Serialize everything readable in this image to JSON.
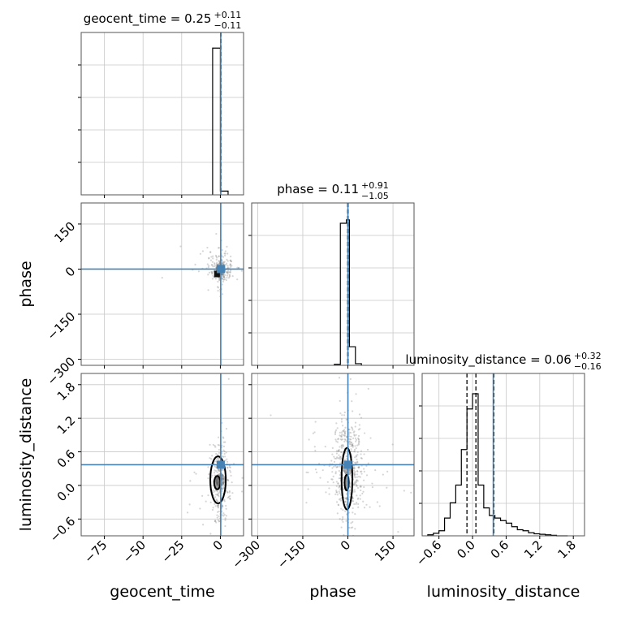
{
  "chart_data": {
    "type": "corner",
    "parameters": [
      {
        "key": "geocent_time",
        "label": "geocent_time",
        "ticks": [
          -75,
          -50,
          -25,
          0
        ],
        "tick_labels": [
          "−75",
          "−50",
          "−25",
          "0"
        ],
        "range": [
          -90,
          15
        ],
        "truth": 0.25
      },
      {
        "key": "phase",
        "label": "phase",
        "ticks": [
          -300,
          -150,
          0,
          150
        ],
        "tick_labels": [
          "−300",
          "−150",
          "0",
          "150"
        ],
        "range": [
          -320,
          220
        ],
        "truth": 0.11
      },
      {
        "key": "luminosity_distance",
        "label": "luminosity_distance",
        "ticks": [
          -0.6,
          0.0,
          0.6,
          1.2,
          1.8
        ],
        "tick_labels": [
          "−0.6",
          "0.0",
          "0.6",
          "1.2",
          "1.8"
        ],
        "range": [
          -0.9,
          2.0
        ],
        "truth": 0.37
      }
    ],
    "titles": [
      {
        "param": "geocent_time",
        "prefix": "geocent_time = ",
        "median": "0.25",
        "plus": "+0.11",
        "minus": "−0.11"
      },
      {
        "param": "phase",
        "prefix": "phase = ",
        "median": "0.11",
        "plus": "+0.91",
        "minus": "−1.05"
      },
      {
        "param": "luminosity_distance",
        "prefix": "luminosity_distance = ",
        "median": "0.06",
        "plus": "+0.32",
        "minus": "−0.16"
      }
    ],
    "histograms": [
      {
        "param": "geocent_time",
        "bin_edges": [
          -5,
          0,
          5
        ],
        "counts": [
          4.7,
          0.12
        ],
        "quantiles": [
          0.14,
          0.25,
          0.36
        ],
        "ymax": 5.2
      },
      {
        "param": "phase",
        "bin_edges": [
          -45,
          -25,
          -5,
          5,
          25,
          45
        ],
        "counts": [
          0.03,
          4.2,
          4.3,
          0.55,
          0.05
        ],
        "quantiles": [
          -0.94,
          0.11,
          1.02
        ],
        "ymax": 4.8
      },
      {
        "param": "luminosity_distance",
        "bin_edges": [
          -0.8,
          -0.7,
          -0.6,
          -0.5,
          -0.4,
          -0.3,
          -0.2,
          -0.1,
          0.0,
          0.1,
          0.2,
          0.3,
          0.4,
          0.5,
          0.6,
          0.7,
          0.8,
          0.9,
          1.0,
          1.1,
          1.2,
          1.3,
          1.4,
          1.5,
          1.6,
          1.7
        ],
        "counts": [
          0.02,
          0.05,
          0.1,
          0.35,
          0.65,
          1.0,
          1.7,
          2.5,
          2.8,
          1.0,
          0.55,
          0.4,
          0.35,
          0.3,
          0.25,
          0.18,
          0.12,
          0.1,
          0.06,
          0.04,
          0.03,
          0.02,
          0.01,
          0.0,
          0.0
        ],
        "quantiles": [
          -0.1,
          0.06,
          0.38
        ],
        "ymax": 3.2
      }
    ],
    "scatter_panels": [
      {
        "x_param": "geocent_time",
        "y_param": "phase",
        "x_center": 0.25,
        "x_spread": 3.5,
        "y_center": 0,
        "y_spread": 25,
        "point_count": 260,
        "contours": []
      },
      {
        "x_param": "geocent_time",
        "y_param": "luminosity_distance",
        "x_center": 0,
        "x_spread": 3,
        "y_center": 0.1,
        "y_spread": 0.35,
        "point_count": 300,
        "contours": [
          {
            "cx": -1.5,
            "cy": 0.1,
            "rx": 5,
            "ry": 0.42
          },
          {
            "cx": -2,
            "cy": 0.05,
            "rx": 2,
            "ry": 0.12
          }
        ]
      },
      {
        "x_param": "phase",
        "y_param": "luminosity_distance",
        "x_center": 0,
        "x_spread": 25,
        "y_center": 0.3,
        "y_spread": 0.45,
        "point_count": 520,
        "contours": [
          {
            "cx": -3,
            "cy": 0.12,
            "rx": 18,
            "ry": 0.55
          },
          {
            "cx": -4,
            "cy": 0.05,
            "rx": 7,
            "ry": 0.14
          }
        ]
      }
    ],
    "colors": {
      "truth": "#4682b4",
      "points": "#8a8a8a",
      "contour": "#000000",
      "grid": "#c8c8c8",
      "hist": "#000000"
    }
  }
}
